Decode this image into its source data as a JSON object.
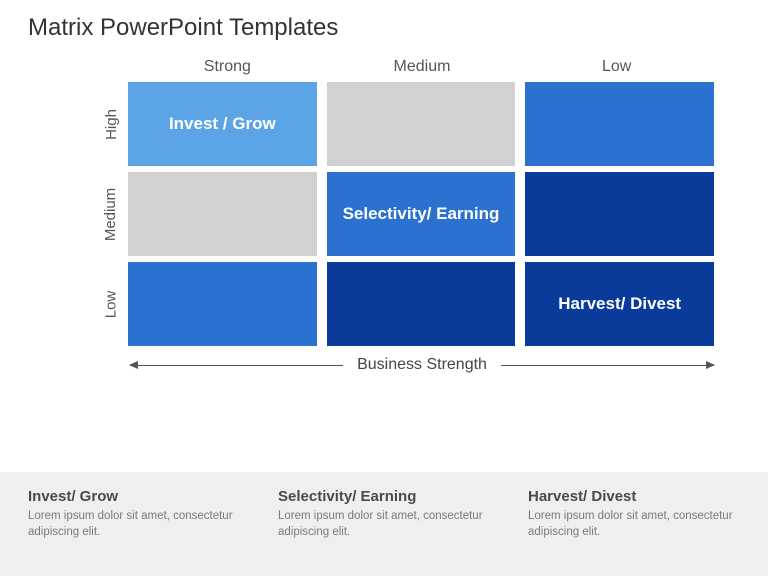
{
  "title": "Matrix PowerPoint Templates",
  "matrix": {
    "col_headers": [
      "Strong",
      "Medium",
      "Low"
    ],
    "row_headers": [
      "High",
      "Medium",
      "Low"
    ],
    "cells": [
      [
        {
          "label": "Invest / Grow",
          "bg": "#5ba4e6"
        },
        {
          "label": "",
          "bg": "#d1d1d1"
        },
        {
          "label": "",
          "bg": "#2a71d0"
        }
      ],
      [
        {
          "label": "",
          "bg": "#d1d1d1"
        },
        {
          "label": "Selectivity/ Earning",
          "bg": "#2a71d0"
        },
        {
          "label": "",
          "bg": "#0a3b9a"
        }
      ],
      [
        {
          "label": "",
          "bg": "#2a71d0"
        },
        {
          "label": "",
          "bg": "#0a3b9a"
        },
        {
          "label": "Harvest/ Divest",
          "bg": "#0a3b9a"
        }
      ]
    ],
    "axis_label": "Business Strength",
    "text_color": "#ffffff",
    "cell_font_size": 17,
    "header_color": "#555555",
    "title_color": "#333333",
    "background": "#ffffff",
    "gap": 10
  },
  "footer": {
    "background": "#efefef",
    "items": [
      {
        "heading": "Invest/ Grow",
        "text": "Lorem ipsum dolor sit amet, consectetur adipiscing elit."
      },
      {
        "heading": "Selectivity/ Earning",
        "text": "Lorem ipsum dolor sit amet, consectetur adipiscing elit."
      },
      {
        "heading": "Harvest/ Divest",
        "text": "Lorem ipsum dolor sit amet, consectetur adipiscing elit."
      }
    ],
    "heading_color": "#4a4a4a",
    "text_color": "#7a7a7a"
  }
}
